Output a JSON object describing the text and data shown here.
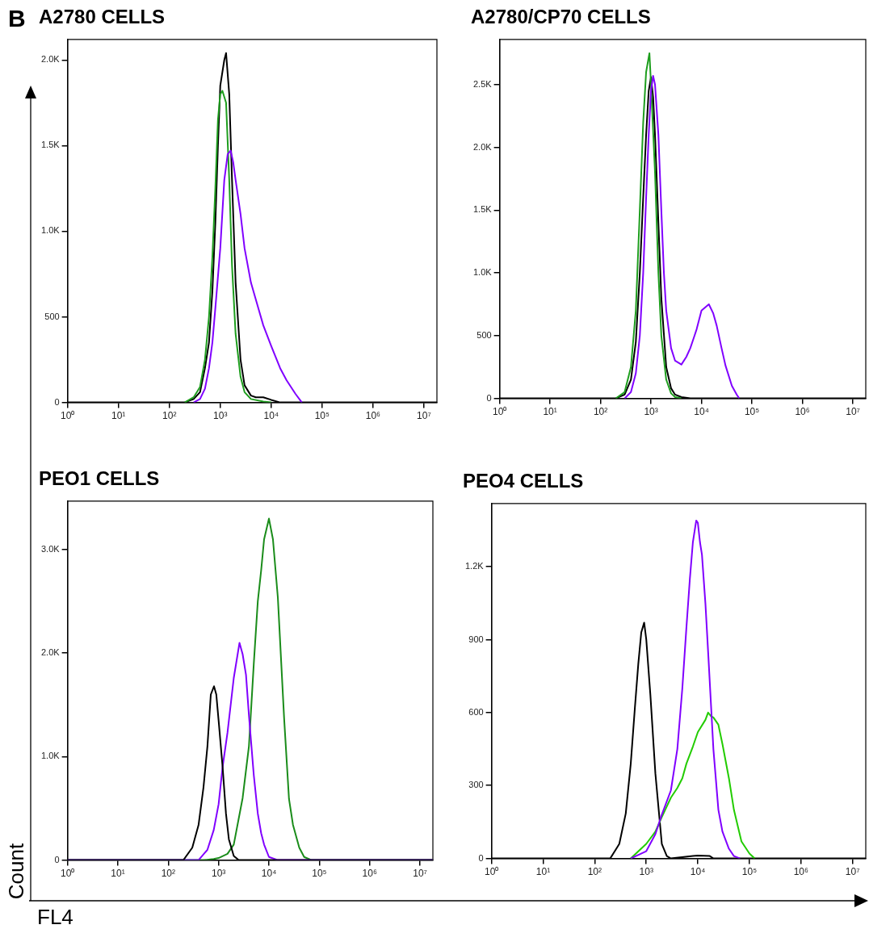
{
  "chart_data": [
    {
      "type": "line",
      "title": "A2780 CELLS",
      "annotations": [
        "B"
      ],
      "log": "x",
      "grid": false,
      "legend": false,
      "marker": "none",
      "line_style": "solid",
      "xlim": [
        1,
        18000000
      ],
      "xticks": [
        {
          "value": 1,
          "label": "10⁰"
        },
        {
          "value": 10,
          "label": "10¹"
        },
        {
          "value": 100,
          "label": "10²"
        },
        {
          "value": 1000,
          "label": "10³"
        },
        {
          "value": 10000,
          "label": "10⁴"
        },
        {
          "value": 100000,
          "label": "10⁵"
        },
        {
          "value": 1000000,
          "label": "10⁶"
        },
        {
          "value": 10000000,
          "label": "10⁷"
        }
      ],
      "ylim": [
        0,
        2120
      ],
      "yticks": [
        0,
        500,
        {
          "value": 1000,
          "label": "1.0K"
        },
        {
          "value": 1500,
          "label": "1.5K"
        },
        {
          "value": 2000,
          "label": "2.0K"
        }
      ],
      "series": [
        {
          "color": "#8000ff",
          "x": [
            300,
            400,
            500,
            600,
            700,
            800,
            1000,
            1200,
            1400,
            1600,
            1800,
            2000,
            2500,
            3000,
            4000,
            5000,
            7000,
            10000,
            15000,
            20000,
            30000,
            40000
          ],
          "values": [
            0,
            20,
            80,
            200,
            350,
            550,
            900,
            1300,
            1450,
            1470,
            1400,
            1300,
            1100,
            900,
            700,
            600,
            450,
            330,
            200,
            130,
            50,
            0
          ]
        },
        {
          "color": "#1e9e1e",
          "x": [
            200,
            300,
            400,
            500,
            600,
            700,
            800,
            900,
            1000,
            1100,
            1300,
            1500,
            1700,
            2000,
            2500,
            3000,
            4000,
            7000,
            10000
          ],
          "values": [
            0,
            30,
            90,
            250,
            500,
            850,
            1250,
            1650,
            1800,
            1820,
            1750,
            1300,
            800,
            400,
            150,
            60,
            20,
            5,
            0
          ]
        },
        {
          "color": "#000000",
          "x": [
            1,
            200,
            300,
            400,
            500,
            600,
            700,
            800,
            900,
            1000,
            1200,
            1300,
            1500,
            1700,
            2000,
            2500,
            3000,
            4000,
            5000,
            7000,
            10000,
            15000,
            18000000
          ],
          "values": [
            0,
            0,
            20,
            60,
            200,
            350,
            650,
            1050,
            1500,
            1850,
            2000,
            2040,
            1800,
            1300,
            700,
            250,
            100,
            40,
            30,
            30,
            15,
            0,
            0
          ]
        }
      ]
    },
    {
      "type": "line",
      "title": "A2780/CP70 CELLS",
      "log": "x",
      "grid": false,
      "legend": false,
      "marker": "none",
      "line_style": "solid",
      "xlim": [
        1,
        18000000
      ],
      "xticks": [
        {
          "value": 1,
          "label": "10⁰"
        },
        {
          "value": 10,
          "label": "10¹"
        },
        {
          "value": 100,
          "label": "10²"
        },
        {
          "value": 1000,
          "label": "10³"
        },
        {
          "value": 10000,
          "label": "10⁴"
        },
        {
          "value": 100000,
          "label": "10⁵"
        },
        {
          "value": 1000000,
          "label": "10⁶"
        },
        {
          "value": 10000000,
          "label": "10⁷"
        }
      ],
      "ylim": [
        0,
        2860
      ],
      "yticks": [
        0,
        500,
        {
          "value": 1000,
          "label": "1.0K"
        },
        {
          "value": 1500,
          "label": "1.5K"
        },
        {
          "value": 2000,
          "label": "2.0K"
        },
        {
          "value": 2500,
          "label": "2.5K"
        }
      ],
      "series": [
        {
          "color": "#8000ff",
          "x": [
            300,
            400,
            500,
            600,
            700,
            800,
            900,
            1000,
            1100,
            1200,
            1400,
            1600,
            1800,
            2000,
            2500,
            3000,
            4000,
            5000,
            6000,
            7000,
            8000,
            10000,
            14000,
            17000,
            20000,
            25000,
            30000,
            40000,
            50000,
            56000
          ],
          "values": [
            0,
            50,
            200,
            500,
            1000,
            1600,
            2100,
            2450,
            2570,
            2500,
            2100,
            1500,
            1000,
            700,
            400,
            300,
            270,
            330,
            400,
            480,
            550,
            700,
            750,
            680,
            580,
            400,
            260,
            100,
            30,
            0
          ]
        },
        {
          "color": "#1e9e1e",
          "x": [
            200,
            300,
            400,
            500,
            600,
            700,
            800,
            930,
            1000,
            1200,
            1400,
            1600,
            2000,
            2500,
            3000,
            4000
          ],
          "values": [
            0,
            50,
            250,
            700,
            1500,
            2200,
            2600,
            2750,
            2500,
            1800,
            1000,
            500,
            150,
            40,
            10,
            0
          ]
        },
        {
          "color": "#000000",
          "x": [
            1,
            200,
            300,
            400,
            500,
            600,
            700,
            800,
            900,
            1000,
            1100,
            1200,
            1400,
            1600,
            2000,
            2500,
            3000,
            4000,
            6000,
            18000000
          ],
          "values": [
            0,
            0,
            30,
            150,
            450,
            1000,
            1600,
            2100,
            2450,
            2560,
            2400,
            2100,
            1400,
            800,
            250,
            80,
            30,
            10,
            0,
            0
          ]
        }
      ]
    },
    {
      "type": "line",
      "title": "PEO1 CELLS",
      "xlabel": "FL4",
      "ylabel": "Count",
      "log": "x",
      "grid": false,
      "legend": false,
      "marker": "none",
      "line_style": "solid",
      "xlim": [
        1,
        18000000
      ],
      "xticks": [
        {
          "value": 1,
          "label": "10⁰"
        },
        {
          "value": 10,
          "label": "10¹"
        },
        {
          "value": 100,
          "label": "10²"
        },
        {
          "value": 1000,
          "label": "10³"
        },
        {
          "value": 10000,
          "label": "10⁴"
        },
        {
          "value": 100000,
          "label": "10⁵"
        },
        {
          "value": 1000000,
          "label": "10⁶"
        },
        {
          "value": 10000000,
          "label": "10⁷"
        }
      ],
      "ylim": [
        0,
        3470
      ],
      "yticks": [
        0,
        {
          "value": 1000,
          "label": "1.0K"
        },
        {
          "value": 2000,
          "label": "2.0K"
        },
        {
          "value": 3000,
          "label": "3.0K"
        }
      ],
      "series": [
        {
          "color": "#000000",
          "x": [
            1,
            200,
            300,
            400,
            500,
            600,
            700,
            810,
            900,
            1000,
            1200,
            1400,
            1600,
            2000,
            2500,
            18000000
          ],
          "values": [
            0,
            0,
            120,
            340,
            700,
            1100,
            1600,
            1680,
            1600,
            1350,
            900,
            450,
            200,
            40,
            0,
            0
          ]
        },
        {
          "color": "#8000ff",
          "x": [
            1,
            400,
            600,
            800,
            1000,
            1200,
            1500,
            2000,
            2600,
            3000,
            3500,
            4000,
            5000,
            6000,
            7000,
            8000,
            10000,
            15000,
            18000000
          ],
          "values": [
            0,
            0,
            100,
            290,
            540,
            900,
            1230,
            1760,
            2100,
            1990,
            1790,
            1400,
            820,
            450,
            260,
            150,
            30,
            0,
            0
          ]
        },
        {
          "color": "#1a8c1a",
          "x": [
            1,
            500,
            800,
            1000,
            1500,
            2000,
            3000,
            4000,
            5000,
            6000,
            7000,
            8000,
            10000,
            12000,
            15000,
            20000,
            25000,
            30000,
            40000,
            50000,
            70000,
            18000000
          ],
          "values": [
            0,
            0,
            10,
            20,
            60,
            150,
            600,
            1100,
            1900,
            2500,
            2800,
            3100,
            3300,
            3100,
            2540,
            1370,
            590,
            340,
            120,
            30,
            0,
            0
          ]
        }
      ]
    },
    {
      "type": "line",
      "title": "PEO4 CELLS",
      "log": "x",
      "grid": false,
      "legend": false,
      "marker": "none",
      "line_style": "solid",
      "xlim": [
        1,
        18000000
      ],
      "xticks": [
        {
          "value": 1,
          "label": "10⁰"
        },
        {
          "value": 10,
          "label": "10¹"
        },
        {
          "value": 100,
          "label": "10²"
        },
        {
          "value": 1000,
          "label": "10³"
        },
        {
          "value": 10000,
          "label": "10⁴"
        },
        {
          "value": 100000,
          "label": "10⁵"
        },
        {
          "value": 1000000,
          "label": "10⁶"
        },
        {
          "value": 10000000,
          "label": "10⁷"
        }
      ],
      "ylim": [
        0,
        1460
      ],
      "yticks": [
        0,
        300,
        600,
        900,
        {
          "value": 1200,
          "label": "1.2K"
        }
      ],
      "series": [
        {
          "color": "#8000ff",
          "x": [
            500,
            1000,
            1500,
            2000,
            3000,
            4000,
            5000,
            6000,
            7000,
            8000,
            9300,
            10000,
            11000,
            12000,
            14000,
            16000,
            20000,
            25000,
            30000,
            40000,
            50000,
            66000
          ],
          "values": [
            0,
            30,
            100,
            180,
            280,
            450,
            700,
            950,
            1150,
            1300,
            1390,
            1380,
            1300,
            1250,
            1050,
            830,
            450,
            200,
            110,
            40,
            10,
            0
          ]
        },
        {
          "color": "#22cc00",
          "x": [
            500,
            1000,
            1500,
            2000,
            3000,
            4000,
            5000,
            6000,
            8000,
            10000,
            14000,
            15800,
            18000,
            20000,
            25000,
            30000,
            40000,
            50000,
            70000,
            100000,
            126000
          ],
          "values": [
            0,
            60,
            110,
            170,
            250,
            290,
            330,
            390,
            460,
            520,
            570,
            600,
            585,
            580,
            550,
            470,
            330,
            200,
            70,
            20,
            0
          ]
        },
        {
          "color": "#000000",
          "x": [
            1,
            200,
            300,
            400,
            500,
            600,
            700,
            800,
            910,
            1000,
            1200,
            1500,
            2000,
            2500,
            3000,
            8000,
            10000,
            17000,
            20000,
            18000000
          ],
          "values": [
            0,
            0,
            60,
            185,
            390,
            617,
            800,
            930,
            970,
            900,
            674,
            350,
            60,
            10,
            0,
            10,
            12,
            10,
            0,
            0
          ]
        }
      ]
    }
  ]
}
